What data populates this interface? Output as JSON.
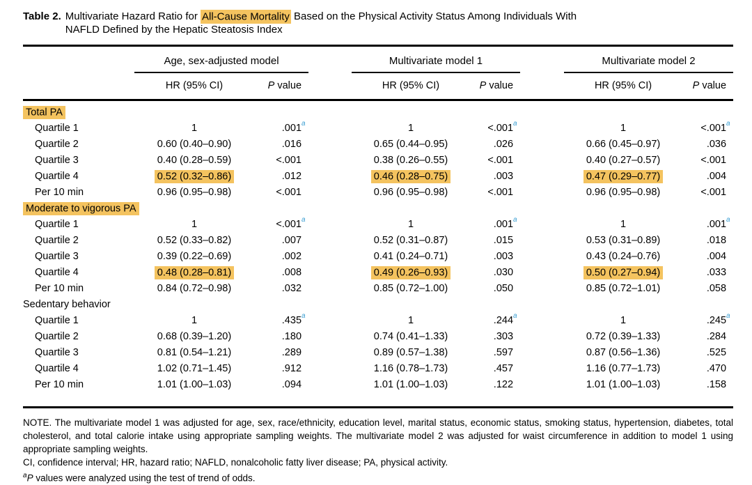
{
  "colors": {
    "highlight": "#F4C35F",
    "superscript_a": "#3D9FD3",
    "rule": "#000000"
  },
  "caption": {
    "label": "Table 2.",
    "line1_pre": "Multivariate Hazard Ratio for ",
    "highlight": "All-Cause Mortality",
    "line1_post": " Based on the Physical Activity Status Among Individuals With",
    "line2": "NAFLD Defined by the Hepatic Steatosis Index"
  },
  "header": {
    "groups": [
      {
        "label": "Age, sex-adjusted model"
      },
      {
        "label": "Multivariate model 1"
      },
      {
        "label": "Multivariate model 2"
      }
    ],
    "hr_label": "HR (95% CI)",
    "p_italic": "P",
    "p_rest": " value"
  },
  "sections": [
    {
      "label": "Total PA",
      "highlight": true,
      "rows": [
        {
          "label": "Quartile 1",
          "cells": [
            {
              "hr": "1",
              "p": ".001",
              "p_sup": "a"
            },
            {
              "hr": "1",
              "p": "<.001",
              "p_sup": "a"
            },
            {
              "hr": "1",
              "p": "<.001",
              "p_sup": "a"
            }
          ]
        },
        {
          "label": "Quartile 2",
          "cells": [
            {
              "hr": "0.60 (0.40–0.90)",
              "p": ".016"
            },
            {
              "hr": "0.65 (0.44–0.95)",
              "p": ".026"
            },
            {
              "hr": "0.66 (0.45–0.97)",
              "p": ".036"
            }
          ]
        },
        {
          "label": "Quartile 3",
          "cells": [
            {
              "hr": "0.40 (0.28–0.59)",
              "p": "<.001"
            },
            {
              "hr": "0.38 (0.26–0.55)",
              "p": "<.001"
            },
            {
              "hr": "0.40 (0.27–0.57)",
              "p": "<.001"
            }
          ]
        },
        {
          "label": "Quartile 4",
          "cells": [
            {
              "hr": "0.52 (0.32–0.86)",
              "hr_highlight": true,
              "p": ".012"
            },
            {
              "hr": "0.46 (0.28–0.75)",
              "hr_highlight": true,
              "p": ".003"
            },
            {
              "hr": "0.47 (0.29–0.77)",
              "hr_highlight": true,
              "p": ".004"
            }
          ]
        },
        {
          "label": "Per 10 min",
          "cells": [
            {
              "hr": "0.96 (0.95–0.98)",
              "p": "<.001"
            },
            {
              "hr": "0.96 (0.95–0.98)",
              "p": "<.001"
            },
            {
              "hr": "0.96 (0.95–0.98)",
              "p": "<.001"
            }
          ]
        }
      ]
    },
    {
      "label": "Moderate to vigorous PA",
      "highlight": true,
      "rows": [
        {
          "label": "Quartile 1",
          "cells": [
            {
              "hr": "1",
              "p": "<.001",
              "p_sup": "a"
            },
            {
              "hr": "1",
              "p": ".001",
              "p_sup": "a"
            },
            {
              "hr": "1",
              "p": ".001",
              "p_sup": "a"
            }
          ]
        },
        {
          "label": "Quartile 2",
          "cells": [
            {
              "hr": "0.52 (0.33–0.82)",
              "p": ".007"
            },
            {
              "hr": "0.52 (0.31–0.87)",
              "p": ".015"
            },
            {
              "hr": "0.53 (0.31–0.89)",
              "p": ".018"
            }
          ]
        },
        {
          "label": "Quartile 3",
          "cells": [
            {
              "hr": "0.39 (0.22–0.69)",
              "p": ".002"
            },
            {
              "hr": "0.41 (0.24–0.71)",
              "p": ".003"
            },
            {
              "hr": "0.43 (0.24–0.76)",
              "p": ".004"
            }
          ]
        },
        {
          "label": "Quartile 4",
          "cells": [
            {
              "hr": "0.48 (0.28–0.81)",
              "hr_highlight": true,
              "p": ".008"
            },
            {
              "hr": "0.49 (0.26–0.93)",
              "hr_highlight": true,
              "p": ".030"
            },
            {
              "hr": "0.50 (0.27–0.94)",
              "hr_highlight": true,
              "p": ".033"
            }
          ]
        },
        {
          "label": "Per 10 min",
          "cells": [
            {
              "hr": "0.84 (0.72–0.98)",
              "p": ".032"
            },
            {
              "hr": "0.85 (0.72–1.00)",
              "p": ".050"
            },
            {
              "hr": "0.85 (0.72–1.01)",
              "p": ".058"
            }
          ]
        }
      ]
    },
    {
      "label": "Sedentary behavior",
      "highlight": false,
      "rows": [
        {
          "label": "Quartile 1",
          "cells": [
            {
              "hr": "1",
              "p": ".435",
              "p_sup": "a"
            },
            {
              "hr": "1",
              "p": ".244",
              "p_sup": "a"
            },
            {
              "hr": "1",
              "p": ".245",
              "p_sup": "a"
            }
          ]
        },
        {
          "label": "Quartile 2",
          "cells": [
            {
              "hr": "0.68 (0.39–1.20)",
              "p": ".180"
            },
            {
              "hr": "0.74 (0.41–1.33)",
              "p": ".303"
            },
            {
              "hr": "0.72 (0.39–1.33)",
              "p": ".284"
            }
          ]
        },
        {
          "label": "Quartile 3",
          "cells": [
            {
              "hr": "0.81 (0.54–1.21)",
              "p": ".289"
            },
            {
              "hr": "0.89 (0.57–1.38)",
              "p": ".597"
            },
            {
              "hr": "0.87 (0.56–1.36)",
              "p": ".525"
            }
          ]
        },
        {
          "label": "Quartile 4",
          "cells": [
            {
              "hr": "1.02 (0.71–1.45)",
              "p": ".912"
            },
            {
              "hr": "1.16 (0.78–1.73)",
              "p": ".457"
            },
            {
              "hr": "1.16 (0.77–1.73)",
              "p": ".470"
            }
          ]
        },
        {
          "label": "Per 10 min",
          "cells": [
            {
              "hr": "1.01 (1.00–1.03)",
              "p": ".094"
            },
            {
              "hr": "1.01 (1.00–1.03)",
              "p": ".122"
            },
            {
              "hr": "1.01 (1.00–1.03)",
              "p": ".158"
            }
          ]
        }
      ]
    }
  ],
  "notes": {
    "main": "NOTE. The multivariate model 1 was adjusted for age, sex, race/ethnicity, education level, marital status, economic status, smoking status, hypertension, diabetes, total cholesterol, and total calorie intake using appropriate sampling weights. The multivariate model 2 was adjusted for waist circumference in addition to model 1 using appropriate sampling weights.",
    "abbreviations": "CI, confidence interval; HR, hazard ratio; NAFLD, nonalcoholic fatty liver disease; PA, physical activity.",
    "footnote_sup": "a",
    "footnote_italic": "P",
    "footnote_rest": " values were analyzed using the test of trend of odds."
  }
}
